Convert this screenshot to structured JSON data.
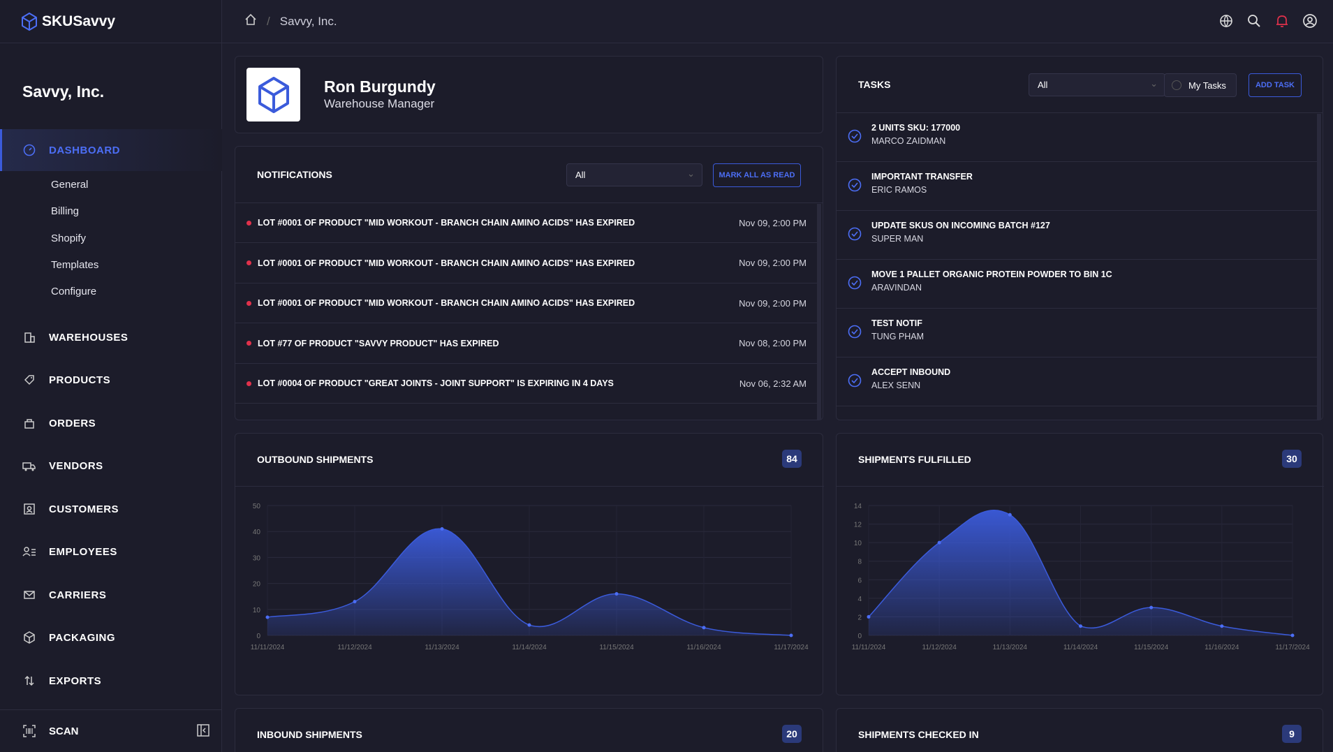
{
  "app": {
    "name": "SKUSavvy",
    "org": "Savvy, Inc."
  },
  "breadcrumb": {
    "current": "Savvy, Inc."
  },
  "nav": {
    "dashboard": "DASHBOARD",
    "sub": [
      "General",
      "Billing",
      "Shopify",
      "Templates",
      "Configure"
    ],
    "items": [
      "WAREHOUSES",
      "PRODUCTS",
      "ORDERS",
      "VENDORS",
      "CUSTOMERS",
      "EMPLOYEES",
      "CARRIERS",
      "PACKAGING",
      "EXPORTS"
    ],
    "scan": "SCAN"
  },
  "profile": {
    "name": "Ron Burgundy",
    "role": "Warehouse Manager"
  },
  "notifications": {
    "title": "NOTIFICATIONS",
    "filter": "All",
    "mark_all": "MARK ALL AS READ",
    "items": [
      {
        "text": "LOT #0001 OF PRODUCT \"MID WORKOUT - BRANCH CHAIN AMINO ACIDS\" HAS EXPIRED",
        "time": "Nov 09, 2:00 PM"
      },
      {
        "text": "LOT #0001 OF PRODUCT \"MID WORKOUT - BRANCH CHAIN AMINO ACIDS\" HAS EXPIRED",
        "time": "Nov 09, 2:00 PM"
      },
      {
        "text": "LOT #0001 OF PRODUCT \"MID WORKOUT - BRANCH CHAIN AMINO ACIDS\" HAS EXPIRED",
        "time": "Nov 09, 2:00 PM"
      },
      {
        "text": "LOT #77 OF PRODUCT \"SAVVY PRODUCT\" HAS EXPIRED",
        "time": "Nov 08, 2:00 PM"
      },
      {
        "text": "LOT #0004 OF PRODUCT \"GREAT JOINTS - JOINT SUPPORT\" IS EXPIRING IN 4 DAYS",
        "time": "Nov 06, 2:32 AM"
      }
    ]
  },
  "tasks": {
    "title": "TASKS",
    "filter": "All",
    "my_tasks": "My Tasks",
    "add": "ADD TASK",
    "items": [
      {
        "title": "2 UNITS SKU: 177000",
        "who": "MARCO ZAIDMAN"
      },
      {
        "title": "IMPORTANT TRANSFER",
        "who": "ERIC RAMOS"
      },
      {
        "title": "UPDATE SKUS ON INCOMING BATCH #127",
        "who": "SUPER MAN"
      },
      {
        "title": "MOVE 1 PALLET ORGANIC PROTEIN POWDER TO BIN 1C",
        "who": "ARAVINDAN"
      },
      {
        "title": "TEST NOTIF",
        "who": "TUNG PHAM"
      },
      {
        "title": "ACCEPT INBOUND",
        "who": "ALEX SENN"
      }
    ]
  },
  "panels": {
    "outbound": {
      "title": "OUTBOUND SHIPMENTS",
      "count": "84"
    },
    "fulfilled": {
      "title": "SHIPMENTS FULFILLED",
      "count": "30"
    },
    "inbound": {
      "title": "INBOUND SHIPMENTS",
      "count": "20"
    },
    "checked_in": {
      "title": "SHIPMENTS CHECKED IN",
      "count": "9"
    }
  },
  "colors": {
    "accent": "#3b5bdb",
    "alert": "#e0314b",
    "bg": "#1e1e2d"
  },
  "chart_data": [
    {
      "type": "area",
      "title": "OUTBOUND SHIPMENTS",
      "x": [
        "11/11/2024",
        "11/12/2024",
        "11/13/2024",
        "11/14/2024",
        "11/15/2024",
        "11/16/2024",
        "11/17/2024"
      ],
      "values": [
        7,
        13,
        41,
        4,
        16,
        3,
        0
      ],
      "yticks": [
        "0",
        "10",
        "20",
        "30",
        "40",
        "50"
      ],
      "ylim": [
        0,
        50
      ]
    },
    {
      "type": "area",
      "title": "SHIPMENTS FULFILLED",
      "x": [
        "11/11/2024",
        "11/12/2024",
        "11/13/2024",
        "11/14/2024",
        "11/15/2024",
        "11/16/2024",
        "11/17/2024"
      ],
      "values": [
        2,
        10,
        13,
        1,
        3,
        1,
        0
      ],
      "yticks": [
        "0",
        "2",
        "4",
        "6",
        "8",
        "10",
        "12",
        "14"
      ],
      "ylim": [
        0,
        14
      ]
    }
  ]
}
